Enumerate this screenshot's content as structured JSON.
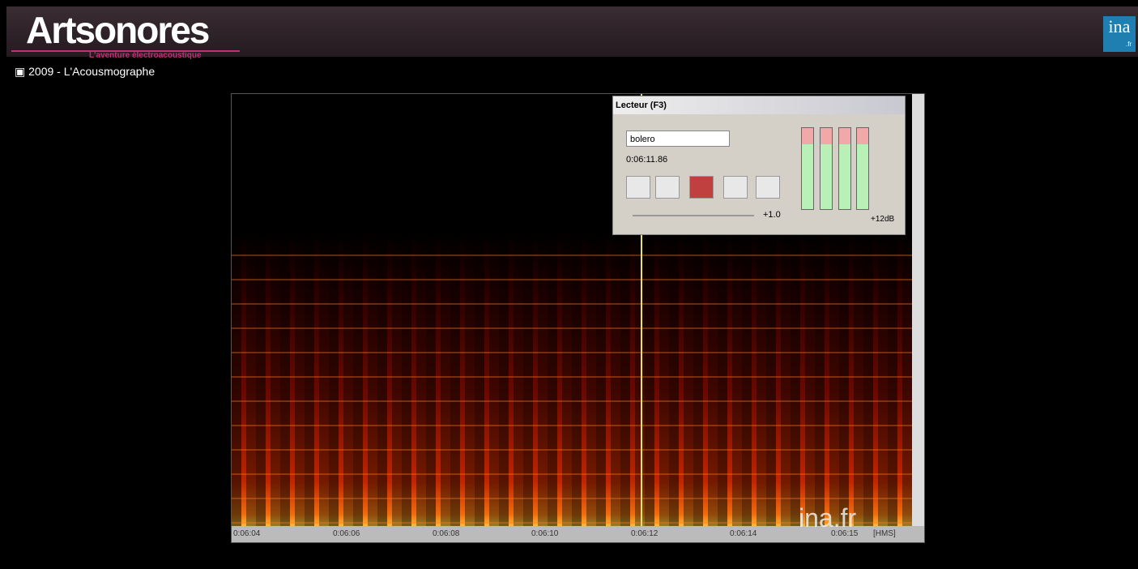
{
  "header": {
    "logo": "Artsonores",
    "tagline": "L'aventure électroacoustique",
    "brand": "ina",
    "brand_suffix": ".fr"
  },
  "video": {
    "title": "2009 - L'Acousmographe",
    "player": {
      "window_title": "Lecteur (F3)",
      "track": "bolero",
      "time": "0:06:11.86",
      "speed": "+1.0",
      "gain": "+12dB"
    },
    "timeline": [
      "0:06:04",
      "0:06:06",
      "0:06:08",
      "0:06:10",
      "0:06:12",
      "0:06:14",
      "0:06:15"
    ],
    "timeline_unit": "[HMS]",
    "watermark": "ina.fr"
  }
}
